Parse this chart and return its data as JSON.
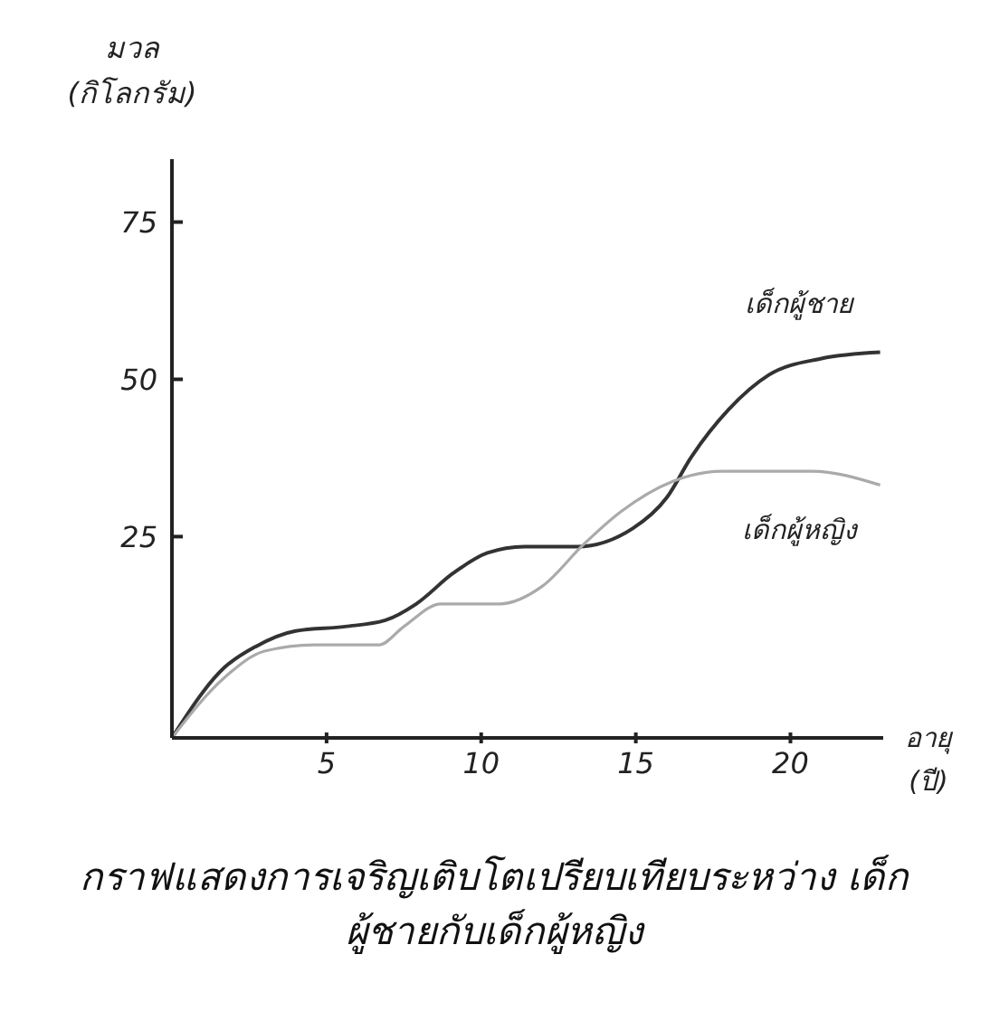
{
  "chart_data": {
    "type": "line",
    "title": "กราฟแสดงการเจริญเติบโตเปรียบเทียบระหว่าง เด็กผู้ชายกับเด็กผู้หญิง",
    "xlabel": "อายุ (ปี)",
    "ylabel": "มวล (กิโลกรัม)",
    "xlim": [
      0,
      23
    ],
    "ylim": [
      -7,
      85
    ],
    "xticks": [
      5,
      10,
      15,
      20
    ],
    "yticks": [
      25,
      50,
      75
    ],
    "grid": false,
    "legend": false,
    "marker": "none",
    "line_style": "solid",
    "series": [
      {
        "name": "เด็กผู้ชาย",
        "color": "#333333",
        "x": [
          0,
          1.7,
          2.7,
          4,
          5.6,
          6.9,
          7.9,
          9.1,
          10.2,
          11.4,
          13.1,
          14.9,
          16,
          16.8,
          18,
          19.3,
          21,
          22.9
        ],
        "values": [
          -7,
          4.2,
          7.5,
          10,
          10.7,
          11.7,
          14.3,
          19.2,
          22.4,
          23.4,
          23.4,
          26.3,
          31.2,
          37.7,
          45.2,
          50.7,
          53.3,
          54.3
        ]
      },
      {
        "name": "เด็กผู้หญิง",
        "color": "#aaaaaa",
        "x": [
          0,
          1.7,
          3,
          4.6,
          6.7,
          7.5,
          8.7,
          10.6,
          12,
          13.3,
          14.5,
          16.2,
          17.8,
          20.7,
          22.9
        ],
        "values": [
          -7,
          2.6,
          6.8,
          7.8,
          7.8,
          10.7,
          14.3,
          14.3,
          17.2,
          23.7,
          28.9,
          33.8,
          35.4,
          35.4,
          33.2
        ]
      }
    ]
  }
}
